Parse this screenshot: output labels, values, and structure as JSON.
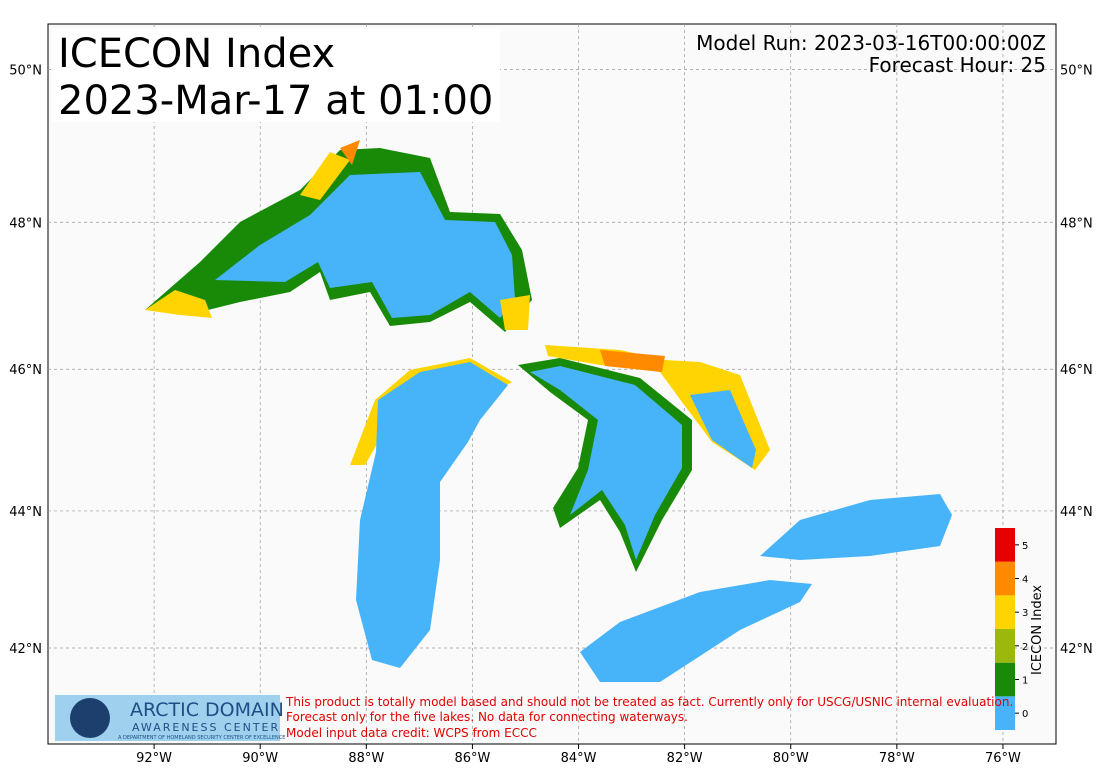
{
  "header": {
    "title": "ICECON Index",
    "valid_time": "2023-Mar-17 at 01:00",
    "model_run": "Model Run: 2023-03-16T00:00:00Z",
    "forecast_hour": "Forecast Hour: 25"
  },
  "map": {
    "xlim": [
      -94,
      -75
    ],
    "ylim": [
      40.56,
      50.58
    ],
    "xticks": [
      {
        "value": -92,
        "label": "92°W"
      },
      {
        "value": -90,
        "label": "90°W"
      },
      {
        "value": -88,
        "label": "88°W"
      },
      {
        "value": -86,
        "label": "86°W"
      },
      {
        "value": -84,
        "label": "84°W"
      },
      {
        "value": -82,
        "label": "82°W"
      },
      {
        "value": -80,
        "label": "80°W"
      },
      {
        "value": -78,
        "label": "78°W"
      },
      {
        "value": -76,
        "label": "76°W"
      }
    ],
    "yticks": [
      {
        "value": 42,
        "label": "42°N"
      },
      {
        "value": 44,
        "label": "44°N"
      },
      {
        "value": 46,
        "label": "46°N"
      },
      {
        "value": 48,
        "label": "48°N"
      },
      {
        "value": 50,
        "label": "50°N"
      }
    ],
    "grid": true
  },
  "colorbar": {
    "label": "ICECON Index",
    "levels": [
      0,
      1,
      2,
      3,
      4,
      5
    ],
    "colors": [
      "#47b4fa",
      "#188a08",
      "#9cb80c",
      "#ffd400",
      "#ff8a00",
      "#e60000"
    ]
  },
  "footer": {
    "logo_title": "ARCTIC DOMAIN",
    "logo_subtitle": "AWARENESS CENTER",
    "logo_caption": "A DEPARTMENT OF HOMELAND SECURITY CENTER OF EXCELLENCE",
    "disclaimer": [
      "This product is totally model based and should not be treated as fact. Currently only for USCG/USNIC internal evaluation.",
      "Forecast only for the five lakes. No data for connecting waterways.",
      "Model input data credit: WCPS from ECCC"
    ]
  }
}
